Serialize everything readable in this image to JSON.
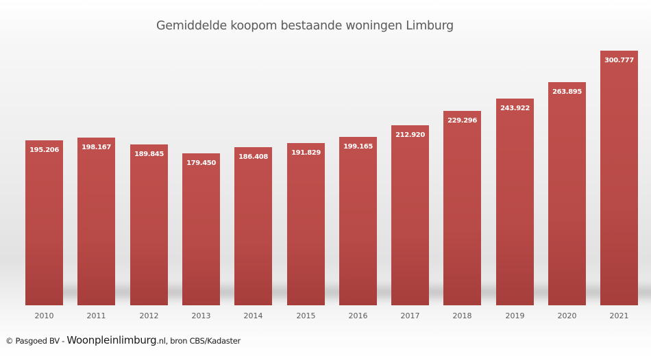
{
  "chart_data": {
    "type": "bar",
    "title": "Gemiddelde koopom bestaande woningen Limburg",
    "xlabel": "",
    "ylabel": "",
    "categories": [
      "2010",
      "2011",
      "2012",
      "2013",
      "2014",
      "2015",
      "2016",
      "2017",
      "2018",
      "2019",
      "2020",
      "2021"
    ],
    "values": [
      195206,
      198167,
      189845,
      179450,
      186408,
      191829,
      199165,
      212920,
      229296,
      243922,
      263895,
      300777
    ],
    "value_labels": [
      "195.206",
      "198.167",
      "189.845",
      "179.450",
      "186.408",
      "191.829",
      "199.165",
      "212.920",
      "229.296",
      "243.922",
      "263.895",
      "300.777"
    ],
    "ylim": [
      0,
      300777
    ],
    "grid": false,
    "legend": "none",
    "y_axis_visible": false,
    "bar_color": "#c0504d"
  },
  "footer": {
    "prefix": "© Pasgoed BV - ",
    "site": "Woonpleinlimburg",
    "suffix": ".nl, bron CBS/Kadaster"
  }
}
